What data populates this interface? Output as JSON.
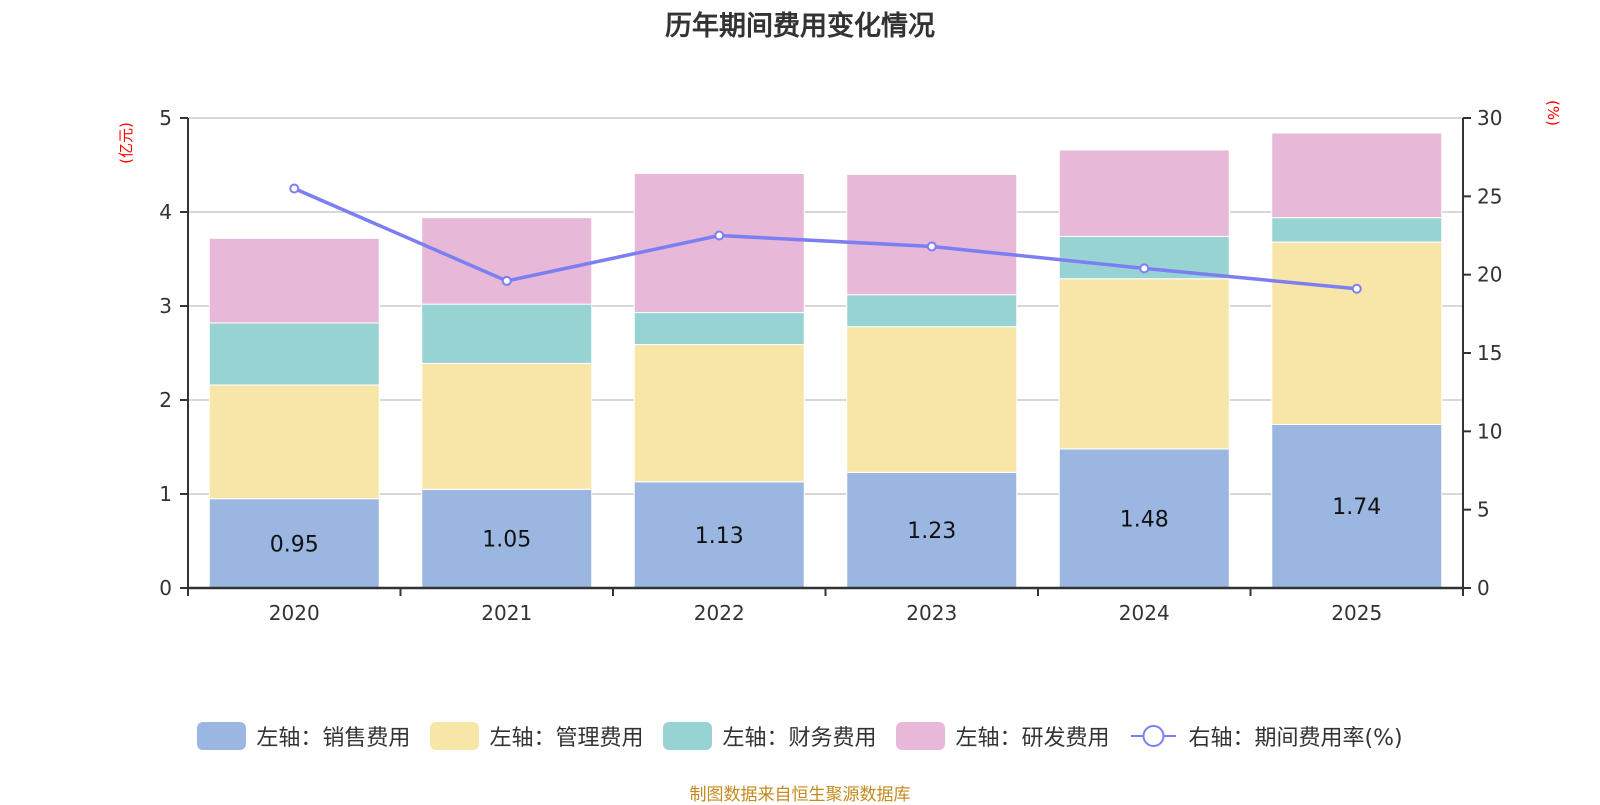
{
  "chart_data": {
    "type": "bar",
    "stacked": true,
    "title": "历年期间费用变化情况",
    "categories": [
      "2020",
      "2021",
      "2022",
      "2023",
      "2024",
      "2025"
    ],
    "left_axis": {
      "unit_label": "(亿元)",
      "ylim": [
        0,
        5
      ],
      "ticks": [
        0,
        1,
        2,
        3,
        4,
        5
      ]
    },
    "right_axis": {
      "unit_label": "(%)",
      "ylim": [
        0,
        30
      ],
      "ticks": [
        0,
        5,
        10,
        15,
        20,
        25,
        30
      ]
    },
    "grid": true,
    "legend_position": "bottom",
    "series": [
      {
        "name": "左轴：销售费用",
        "type": "bar",
        "axis": "left",
        "color": "#9bb7e1",
        "values": [
          0.95,
          1.05,
          1.13,
          1.23,
          1.48,
          1.74
        ],
        "data_labels": [
          "0.95",
          "1.05",
          "1.13",
          "1.23",
          "1.48",
          "1.74"
        ]
      },
      {
        "name": "左轴：管理费用",
        "type": "bar",
        "axis": "left",
        "color": "#f8e6a8",
        "values": [
          1.21,
          1.34,
          1.46,
          1.55,
          1.81,
          1.94
        ]
      },
      {
        "name": "左轴：财务费用",
        "type": "bar",
        "axis": "left",
        "color": "#98d3d3",
        "values": [
          0.66,
          0.63,
          0.34,
          0.34,
          0.45,
          0.26
        ]
      },
      {
        "name": "左轴：研发费用",
        "type": "bar",
        "axis": "left",
        "color": "#e7b8d8",
        "values": [
          0.9,
          0.92,
          1.48,
          1.28,
          0.92,
          0.9
        ]
      },
      {
        "name": "右轴：期间费用率(%)",
        "type": "line",
        "axis": "right",
        "color": "#7b7ff2",
        "values": [
          25.5,
          19.6,
          22.5,
          21.8,
          20.4,
          19.1
        ]
      }
    ]
  },
  "source_note": "制图数据来自恒生聚源数据库"
}
